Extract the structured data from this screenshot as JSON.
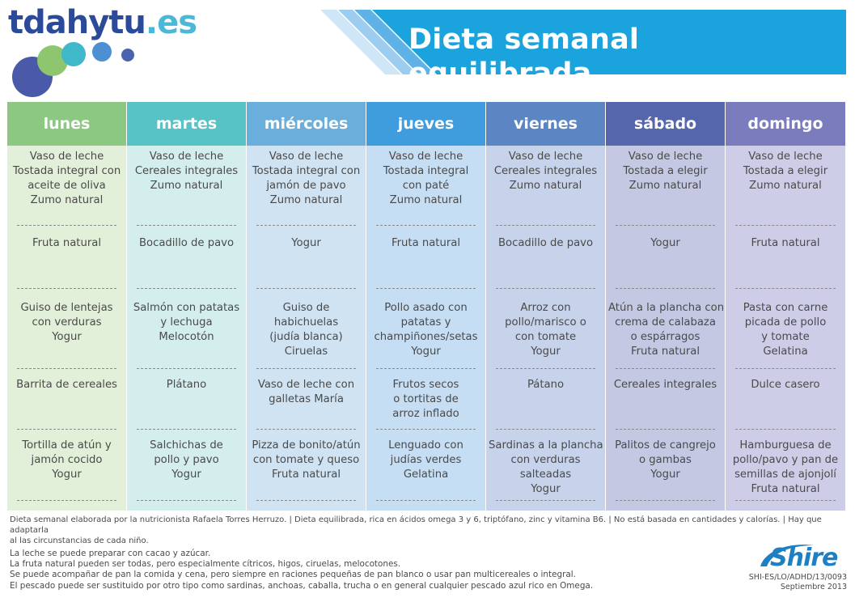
{
  "header": {
    "logo_text": "tdahytu",
    "logo_tld": ".es",
    "title": "Dieta semanal equilibrada"
  },
  "colors": {
    "lunes": "#8dc883",
    "martes": "#57c3c6",
    "miercoles": "#6aaedc",
    "jueves": "#3f9ddd",
    "viernes": "#5b86c3",
    "sabado": "#5566ad",
    "domingo": "#7b7cbe",
    "title_banner": "#1ba3de"
  },
  "days": [
    {
      "name": "lunes",
      "meals": [
        [
          "Vaso de leche",
          "Tostada integral con",
          "aceite de oliva",
          "Zumo natural"
        ],
        [
          "Fruta natural"
        ],
        [
          "Guiso de lentejas",
          "con verduras",
          "Yogur"
        ],
        [
          "Barrita de cereales"
        ],
        [
          "Tortilla de atún y",
          "jamón cocido",
          "Yogur"
        ]
      ]
    },
    {
      "name": "martes",
      "meals": [
        [
          "Vaso de leche",
          "Cereales integrales",
          "Zumo natural"
        ],
        [
          "Bocadillo de pavo"
        ],
        [
          "Salmón con patatas",
          "y lechuga",
          "Melocotón"
        ],
        [
          "Plátano"
        ],
        [
          "Salchichas de",
          "pollo y pavo",
          "Yogur"
        ]
      ]
    },
    {
      "name": "miércoles",
      "meals": [
        [
          "Vaso de leche",
          "Tostada integral con",
          "jamón de pavo",
          "Zumo natural"
        ],
        [
          "Yogur"
        ],
        [
          "Guiso de",
          "habichuelas",
          "(judía blanca)",
          "Ciruelas"
        ],
        [
          "Vaso de leche con",
          "galletas María"
        ],
        [
          "Pizza de bonito/atún",
          "con tomate y queso",
          "Fruta natural"
        ]
      ]
    },
    {
      "name": "jueves",
      "meals": [
        [
          "Vaso de leche",
          "Tostada integral",
          "con paté",
          "Zumo natural"
        ],
        [
          "Fruta natural"
        ],
        [
          "Pollo asado con",
          "patatas y",
          "champiñones/setas",
          "Yogur"
        ],
        [
          "Frutos secos",
          "o tortitas de",
          "arroz inflado"
        ],
        [
          "Lenguado con",
          "judías verdes",
          "Gelatina"
        ]
      ]
    },
    {
      "name": "viernes",
      "meals": [
        [
          "Vaso de leche",
          "Cereales integrales",
          "Zumo natural"
        ],
        [
          "Bocadillo de pavo"
        ],
        [
          "Arroz con",
          "pollo/marisco o",
          "con tomate",
          "Yogur"
        ],
        [
          "Pátano"
        ],
        [
          "Sardinas a la plancha",
          "con verduras",
          "salteadas",
          "Yogur"
        ]
      ]
    },
    {
      "name": "sábado",
      "meals": [
        [
          "Vaso de leche",
          "Tostada a elegir",
          "Zumo natural"
        ],
        [
          "Yogur"
        ],
        [
          "Atún a la plancha con",
          "crema de calabaza",
          "o espárragos",
          "Fruta natural"
        ],
        [
          "Cereales integrales"
        ],
        [
          "Palitos de cangrejo",
          "o gambas",
          "Yogur"
        ]
      ]
    },
    {
      "name": "domingo",
      "meals": [
        [
          "Vaso de leche",
          "Tostada a elegir",
          "Zumo natural"
        ],
        [
          "Fruta natural"
        ],
        [
          "Pasta con carne",
          "picada de pollo",
          "y tomate",
          "Gelatina"
        ],
        [
          "Dulce casero"
        ],
        [
          "Hamburguesa de",
          "pollo/pavo y pan de",
          "semillas de ajonjolí",
          "Fruta natural"
        ]
      ]
    }
  ],
  "footer": {
    "note_line1": "Dieta semanal elaborada por la nutricionista Rafaela Torres Herruzo. | Dieta equilibrada, rica en ácidos omega 3 y 6, triptófano, zinc y vitamina B6. | No está basada en cantidades y calorías. | Hay que adaptarla",
    "note_line2": "al las circunstancias de cada niño.",
    "tips": [
      "La leche se puede preparar con cacao y azúcar.",
      "La fruta natural pueden ser todas, pero especialmente cítricos, higos, ciruelas, melocotones.",
      "Se puede acompañar de pan la comida y cena, pero siempre en raciones pequeñas de pan blanco o usar pan multicereales o integral.",
      "El pescado puede ser sustituido por otro tipo como sardinas, anchoas, caballa, trucha o en general cualquier pescado azul rico en Omega."
    ],
    "brand": "Shire",
    "code": "SHI-ES/LO/ADHD/13/0093",
    "date": "Septiembre 2013"
  }
}
